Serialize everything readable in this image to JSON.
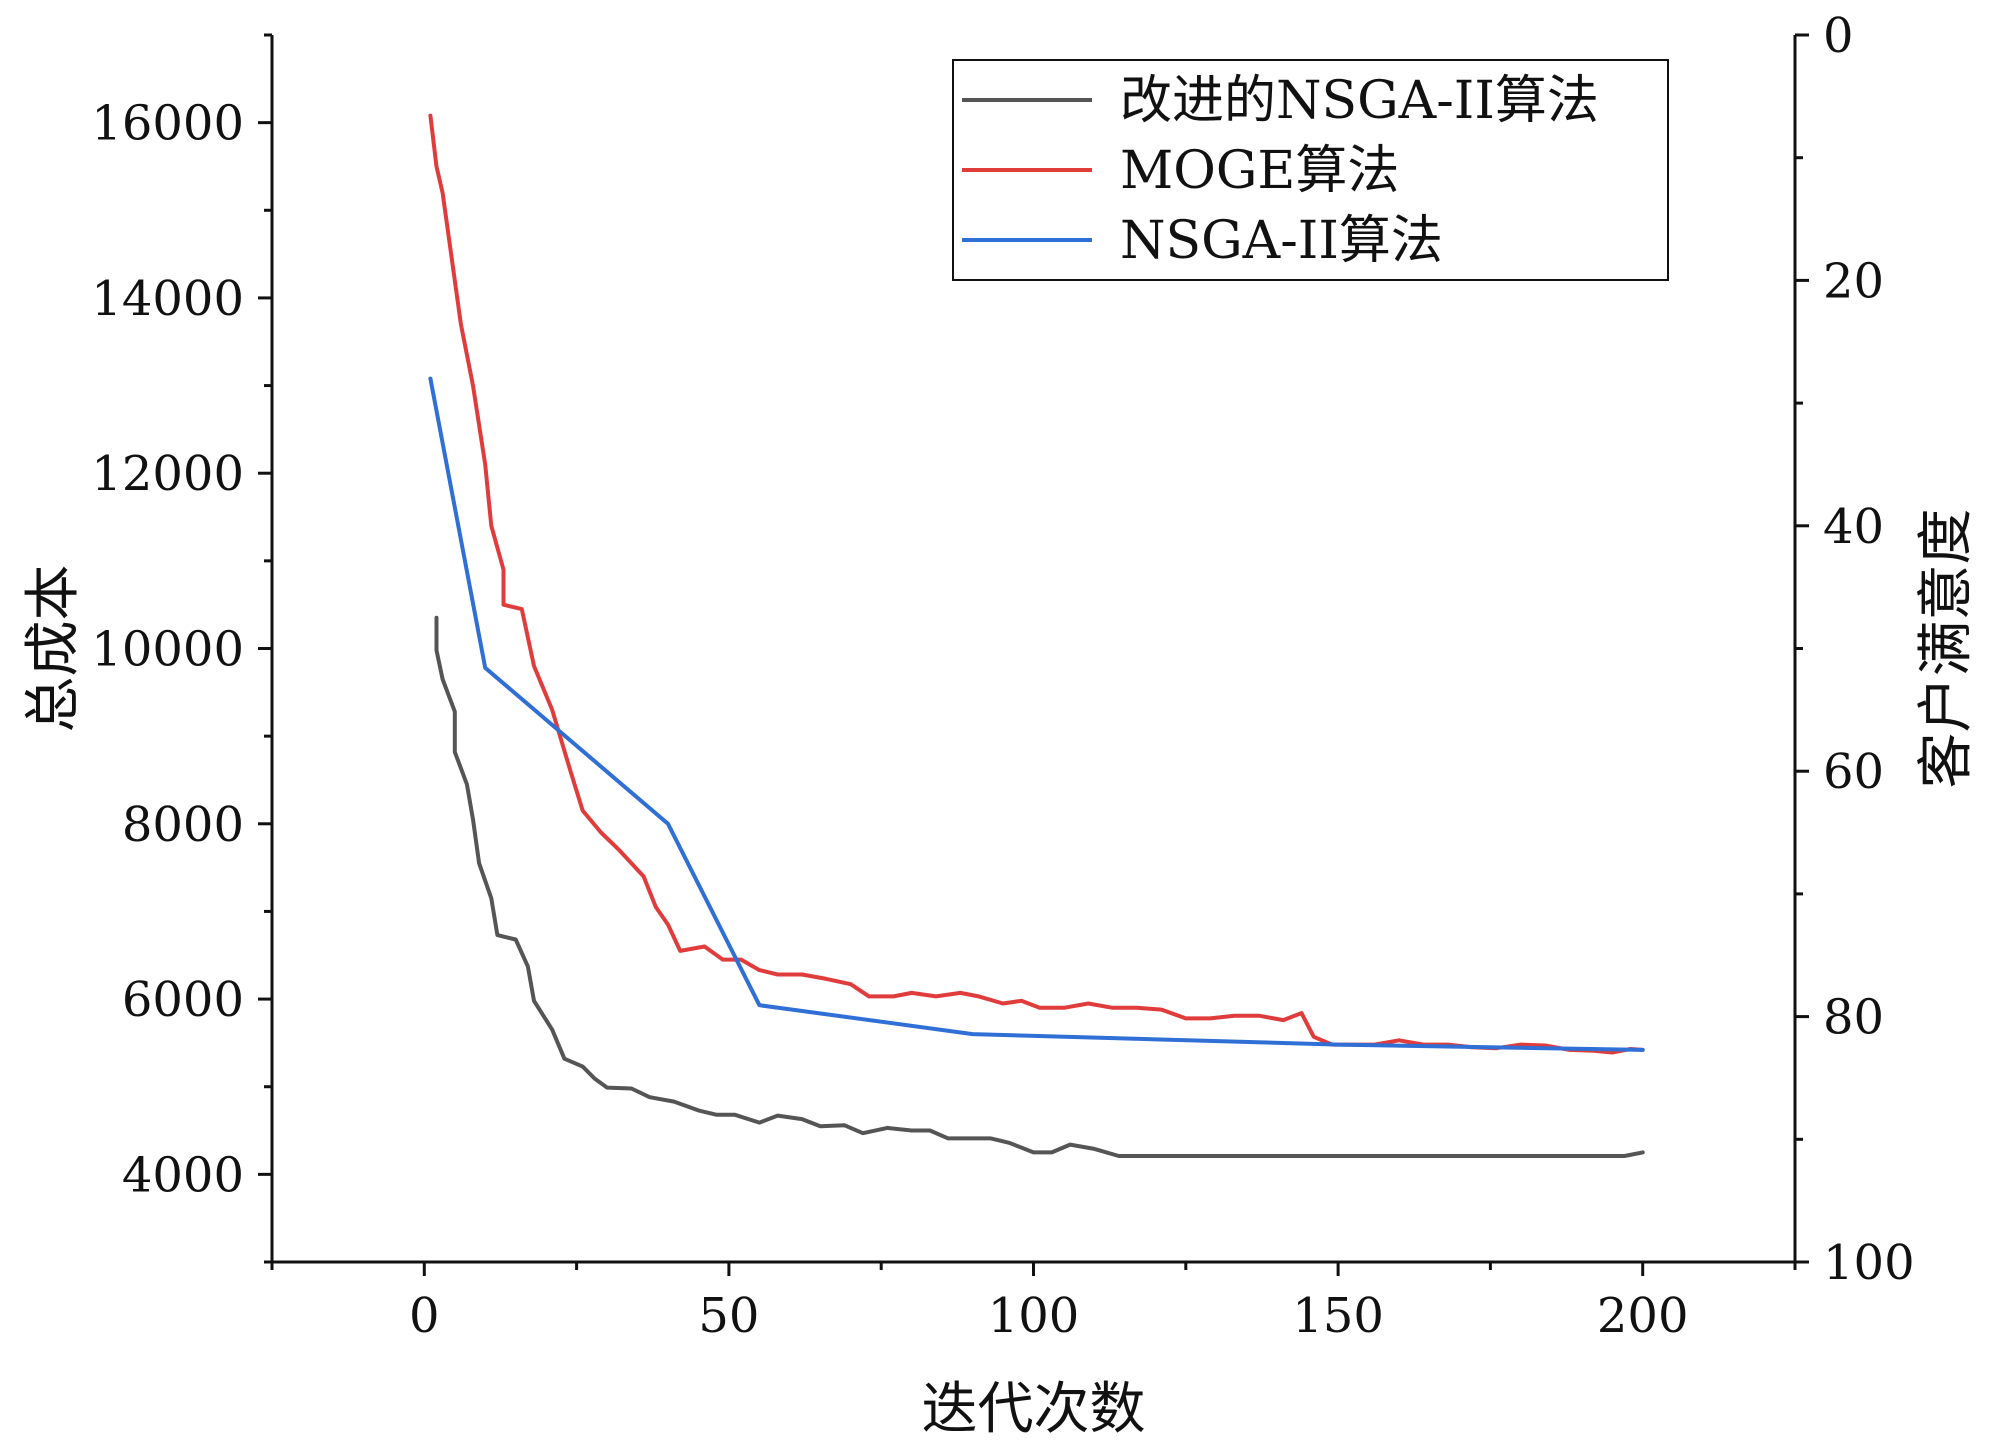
{
  "chart_data": {
    "type": "line",
    "xlabel": "迭代次数",
    "ylabel": "总成本",
    "y2label": "客户满意度",
    "xlim": [
      -25,
      225
    ],
    "ylim": [
      3000,
      17000
    ],
    "y2lim": [
      0,
      100
    ],
    "y2_reversed": true,
    "x_ticks": [
      0,
      50,
      100,
      150,
      200
    ],
    "y_ticks": [
      4000,
      6000,
      8000,
      10000,
      12000,
      14000,
      16000
    ],
    "y2_ticks": [
      0,
      20,
      40,
      60,
      80,
      100
    ],
    "grid": false,
    "legend_position": "top-right",
    "series": [
      {
        "name": "改进的NSGA-II算法",
        "color": "#555555",
        "points": [
          [
            2,
            10350
          ],
          [
            2,
            9980
          ],
          [
            3,
            9650
          ],
          [
            5,
            9280
          ],
          [
            5,
            8820
          ],
          [
            7,
            8450
          ],
          [
            8,
            8050
          ],
          [
            9,
            7550
          ],
          [
            11,
            7150
          ],
          [
            12,
            6730
          ],
          [
            15,
            6680
          ],
          [
            17,
            6370
          ],
          [
            18,
            5980
          ],
          [
            21,
            5650
          ],
          [
            23,
            5320
          ],
          [
            26,
            5230
          ],
          [
            28,
            5090
          ],
          [
            30,
            4990
          ],
          [
            34,
            4980
          ],
          [
            37,
            4880
          ],
          [
            41,
            4830
          ],
          [
            45,
            4730
          ],
          [
            48,
            4680
          ],
          [
            51,
            4680
          ],
          [
            55,
            4590
          ],
          [
            58,
            4670
          ],
          [
            62,
            4630
          ],
          [
            65,
            4550
          ],
          [
            69,
            4560
          ],
          [
            72,
            4470
          ],
          [
            76,
            4530
          ],
          [
            80,
            4500
          ],
          [
            83,
            4500
          ],
          [
            86,
            4410
          ],
          [
            90,
            4410
          ],
          [
            93,
            4410
          ],
          [
            96,
            4360
          ],
          [
            100,
            4250
          ],
          [
            103,
            4250
          ],
          [
            106,
            4340
          ],
          [
            110,
            4290
          ],
          [
            114,
            4210
          ],
          [
            130,
            4210
          ],
          [
            150,
            4210
          ],
          [
            170,
            4210
          ],
          [
            190,
            4210
          ],
          [
            197,
            4210
          ],
          [
            200,
            4250
          ]
        ]
      },
      {
        "name": "MOGE算法",
        "color": "#e03c3c",
        "points": [
          [
            1,
            16080
          ],
          [
            2,
            15500
          ],
          [
            3,
            15200
          ],
          [
            4,
            14700
          ],
          [
            5,
            14200
          ],
          [
            6,
            13700
          ],
          [
            8,
            13000
          ],
          [
            10,
            12100
          ],
          [
            11,
            11400
          ],
          [
            13,
            10900
          ],
          [
            13,
            10500
          ],
          [
            16,
            10450
          ],
          [
            18,
            9800
          ],
          [
            21,
            9300
          ],
          [
            24,
            8600
          ],
          [
            26,
            8150
          ],
          [
            29,
            7900
          ],
          [
            32,
            7700
          ],
          [
            36,
            7400
          ],
          [
            38,
            7050
          ],
          [
            40,
            6850
          ],
          [
            42,
            6550
          ],
          [
            46,
            6600
          ],
          [
            49,
            6450
          ],
          [
            52,
            6450
          ],
          [
            55,
            6330
          ],
          [
            58,
            6280
          ],
          [
            62,
            6280
          ],
          [
            66,
            6230
          ],
          [
            70,
            6170
          ],
          [
            73,
            6030
          ],
          [
            77,
            6030
          ],
          [
            80,
            6070
          ],
          [
            84,
            6030
          ],
          [
            88,
            6070
          ],
          [
            91,
            6030
          ],
          [
            95,
            5950
          ],
          [
            98,
            5980
          ],
          [
            101,
            5900
          ],
          [
            105,
            5900
          ],
          [
            109,
            5950
          ],
          [
            113,
            5900
          ],
          [
            117,
            5900
          ],
          [
            121,
            5880
          ],
          [
            125,
            5780
          ],
          [
            129,
            5780
          ],
          [
            133,
            5810
          ],
          [
            137,
            5810
          ],
          [
            141,
            5760
          ],
          [
            144,
            5840
          ],
          [
            146,
            5570
          ],
          [
            149,
            5480
          ],
          [
            153,
            5480
          ],
          [
            156,
            5480
          ],
          [
            160,
            5530
          ],
          [
            164,
            5480
          ],
          [
            168,
            5480
          ],
          [
            172,
            5450
          ],
          [
            176,
            5440
          ],
          [
            180,
            5480
          ],
          [
            184,
            5470
          ],
          [
            188,
            5420
          ],
          [
            192,
            5410
          ],
          [
            195,
            5390
          ],
          [
            198,
            5430
          ],
          [
            200,
            5420
          ]
        ]
      },
      {
        "name": "NSGA-II算法",
        "color": "#2f6fd6",
        "points": [
          [
            1,
            13080
          ],
          [
            10,
            9780
          ],
          [
            40,
            8000
          ],
          [
            55,
            5930
          ],
          [
            90,
            5600
          ],
          [
            150,
            5480
          ],
          [
            200,
            5420
          ]
        ]
      }
    ]
  }
}
